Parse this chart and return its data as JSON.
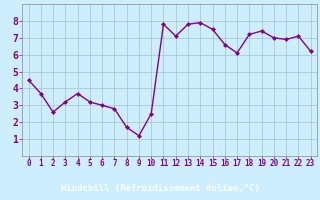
{
  "x": [
    0,
    1,
    2,
    3,
    4,
    5,
    6,
    7,
    8,
    9,
    10,
    11,
    12,
    13,
    14,
    15,
    16,
    17,
    18,
    19,
    20,
    21,
    22,
    23
  ],
  "y": [
    4.5,
    3.7,
    2.6,
    3.2,
    3.7,
    3.2,
    3.0,
    2.8,
    1.7,
    1.2,
    2.5,
    7.8,
    7.1,
    7.8,
    7.9,
    7.5,
    6.6,
    6.1,
    7.2,
    7.4,
    7.0,
    6.9,
    7.1,
    6.2
  ],
  "line_color": "#880088",
  "marker": "D",
  "marker_size": 2.0,
  "linewidth": 1.0,
  "xlabel": "Windchill (Refroidissement éolien,°C)",
  "xlabel_color": "#880088",
  "xlabel_fontsize": 6.5,
  "bg_color": "#cceeff",
  "grid_color": "#aacccc",
  "tick_color": "#880088",
  "tick_fontsize": 5.5,
  "ytick_fontsize": 7,
  "ylim": [
    0,
    9
  ],
  "xlim": [
    -0.5,
    23.5
  ],
  "yticks": [
    1,
    2,
    3,
    4,
    5,
    6,
    7,
    8
  ],
  "xticks": [
    0,
    1,
    2,
    3,
    4,
    5,
    6,
    7,
    8,
    9,
    10,
    11,
    12,
    13,
    14,
    15,
    16,
    17,
    18,
    19,
    20,
    21,
    22,
    23
  ],
  "bottom_bar_color": "#440066",
  "bottom_bar_height": 0.13
}
